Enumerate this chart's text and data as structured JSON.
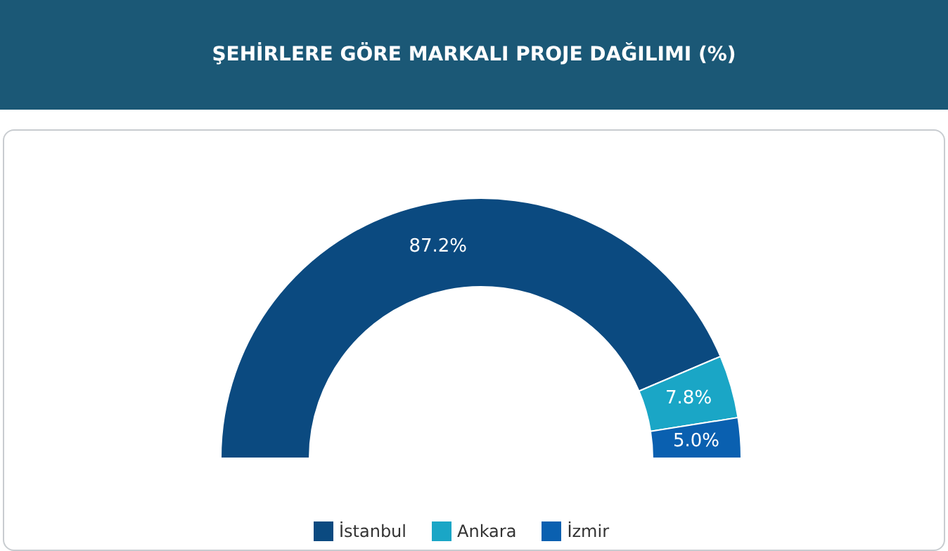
{
  "chart_data": {
    "type": "donut",
    "title": "ŞEHİRLERE GÖRE MARKALI PROJE DAĞILIMI (%)",
    "categories": [
      "İstanbul",
      "Ankara",
      "İzmir"
    ],
    "values": [
      87.2,
      7.8,
      5.0
    ],
    "colors": [
      "#0b4a80",
      "#1aa6c6",
      "#0a60b0"
    ],
    "value_labels": [
      "87.2%",
      "7.8%",
      "5.0%"
    ],
    "legend": "bottom"
  }
}
